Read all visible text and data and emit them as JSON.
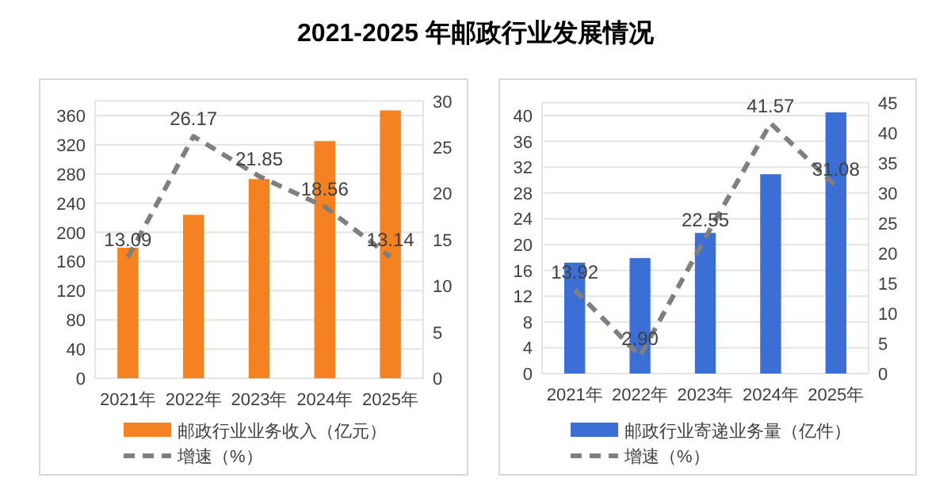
{
  "chart_data": [
    {
      "type": "bar",
      "title": "2021-2025 年邮政行业发展情况",
      "categories": [
        "2021年",
        "2022年",
        "2023年",
        "2024年",
        "2025年"
      ],
      "series": [
        {
          "name": "邮政行业业务收入（亿元）",
          "color": "#f58220",
          "values": [
            179,
            224,
            273,
            325,
            367
          ]
        },
        {
          "name": "增速（%）",
          "type": "line",
          "axis": "y2",
          "color": "#7f7f7f",
          "line_style": "dashed",
          "values": [
            13.09,
            26.17,
            21.85,
            18.56,
            13.14
          ],
          "value_labels": [
            "13.09",
            "26.17",
            "21.85",
            "18.56",
            "13.14"
          ]
        }
      ],
      "ylim": [
        0,
        380
      ],
      "yticks": [
        0,
        40,
        80,
        120,
        160,
        200,
        240,
        280,
        320,
        360
      ],
      "y2lim": [
        0,
        30
      ],
      "y2ticks": [
        0,
        5,
        10,
        15,
        20,
        25,
        30
      ],
      "grid": "y",
      "legend": "bottom"
    },
    {
      "type": "bar",
      "categories": [
        "2021年",
        "2022年",
        "2023年",
        "2024年",
        "2025年"
      ],
      "series": [
        {
          "name": "邮政行业寄递业务量（亿件）",
          "color": "#3b6fd6",
          "values": [
            17.2,
            17.9,
            21.8,
            30.9,
            40.5
          ]
        },
        {
          "name": "增速（%）",
          "type": "line",
          "axis": "y2",
          "color": "#7f7f7f",
          "line_style": "dashed",
          "values": [
            13.92,
            2.9,
            22.55,
            41.57,
            31.08
          ],
          "value_labels": [
            "13.92",
            "2.90",
            "22.55",
            "41.57",
            "31.08"
          ]
        }
      ],
      "ylim": [
        0,
        42
      ],
      "yticks": [
        0,
        4,
        8,
        12,
        16,
        20,
        24,
        28,
        32,
        36,
        40
      ],
      "y2lim": [
        0,
        45
      ],
      "y2ticks": [
        0,
        5,
        10,
        15,
        20,
        25,
        30,
        35,
        40,
        45
      ],
      "grid": "y",
      "legend": "bottom"
    }
  ]
}
